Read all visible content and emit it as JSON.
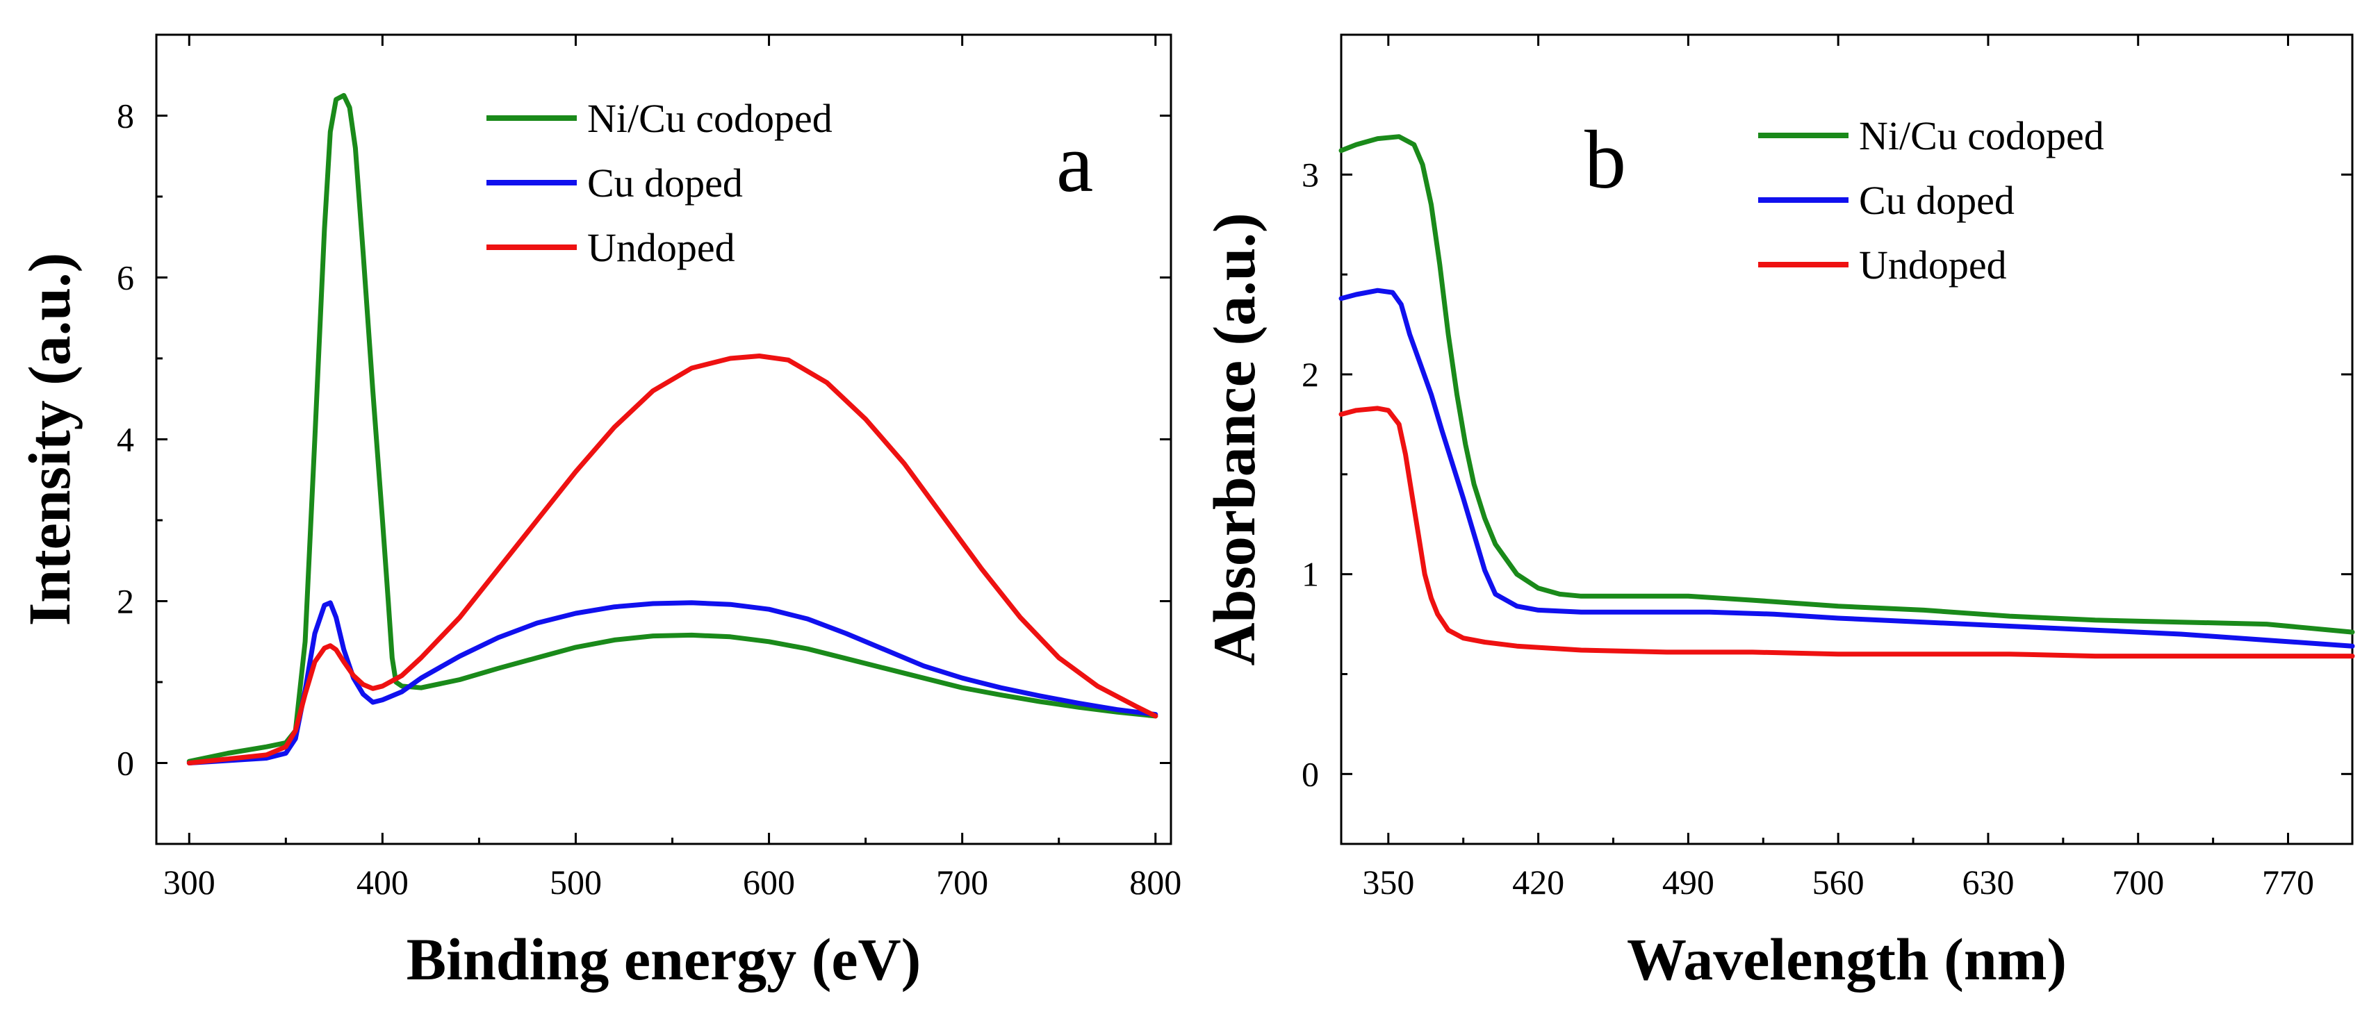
{
  "chart_data": [
    {
      "panel_label": "a",
      "type": "line",
      "xlabel": "Binding energy (eV)",
      "ylabel": "Intensity (a.u.)",
      "xlim": [
        283,
        808
      ],
      "ylim": [
        -1,
        9
      ],
      "xticks": [
        300,
        400,
        500,
        600,
        700,
        800
      ],
      "yticks": [
        0,
        2,
        4,
        6,
        8
      ],
      "grid": false,
      "legend_position": "top-center",
      "series": [
        {
          "name": "Ni/Cu codoped",
          "color": "#1a8a1a",
          "x": [
            300,
            320,
            340,
            350,
            355,
            360,
            365,
            370,
            373,
            376,
            380,
            383,
            386,
            390,
            395,
            400,
            403,
            405,
            407,
            410,
            420,
            440,
            460,
            480,
            500,
            520,
            540,
            560,
            580,
            600,
            620,
            640,
            660,
            680,
            700,
            720,
            740,
            760,
            780,
            800
          ],
          "y": [
            0.02,
            0.12,
            0.2,
            0.25,
            0.4,
            1.5,
            4.0,
            6.6,
            7.8,
            8.2,
            8.25,
            8.1,
            7.6,
            6.3,
            4.6,
            3.0,
            2.0,
            1.3,
            1.0,
            0.95,
            0.93,
            1.03,
            1.17,
            1.3,
            1.43,
            1.52,
            1.57,
            1.58,
            1.56,
            1.5,
            1.41,
            1.29,
            1.17,
            1.05,
            0.93,
            0.84,
            0.76,
            0.69,
            0.63,
            0.58
          ]
        },
        {
          "name": "Cu doped",
          "color": "#1010ee",
          "x": [
            300,
            320,
            340,
            350,
            355,
            360,
            365,
            370,
            373,
            376,
            380,
            385,
            390,
            395,
            400,
            410,
            420,
            440,
            460,
            480,
            500,
            520,
            540,
            560,
            580,
            600,
            620,
            640,
            660,
            680,
            700,
            720,
            740,
            760,
            780,
            800
          ],
          "y": [
            0.0,
            0.03,
            0.06,
            0.12,
            0.3,
            0.9,
            1.6,
            1.95,
            1.98,
            1.8,
            1.4,
            1.05,
            0.85,
            0.75,
            0.78,
            0.88,
            1.05,
            1.32,
            1.55,
            1.73,
            1.85,
            1.93,
            1.97,
            1.98,
            1.96,
            1.9,
            1.78,
            1.6,
            1.4,
            1.2,
            1.05,
            0.93,
            0.83,
            0.74,
            0.66,
            0.6
          ]
        },
        {
          "name": "Undoped",
          "color": "#ee1111",
          "x": [
            300,
            320,
            340,
            350,
            355,
            360,
            365,
            370,
            373,
            376,
            380,
            385,
            390,
            395,
            400,
            410,
            420,
            440,
            460,
            480,
            500,
            520,
            540,
            560,
            580,
            595,
            610,
            630,
            650,
            670,
            690,
            710,
            730,
            750,
            770,
            790,
            800
          ],
          "y": [
            0.0,
            0.05,
            0.1,
            0.2,
            0.4,
            0.85,
            1.25,
            1.42,
            1.45,
            1.4,
            1.25,
            1.08,
            0.97,
            0.92,
            0.95,
            1.08,
            1.3,
            1.8,
            2.4,
            3.0,
            3.6,
            4.15,
            4.6,
            4.88,
            5.0,
            5.03,
            4.98,
            4.7,
            4.25,
            3.7,
            3.05,
            2.4,
            1.8,
            1.3,
            0.95,
            0.7,
            0.58
          ]
        }
      ]
    },
    {
      "panel_label": "b",
      "type": "line",
      "xlabel": "Wavelength (nm)",
      "ylabel": "Absorbance (a.u.)",
      "xlim": [
        328,
        800
      ],
      "ylim": [
        -0.35,
        3.7
      ],
      "xticks": [
        350,
        420,
        490,
        560,
        630,
        700,
        770
      ],
      "yticks": [
        0,
        1,
        2,
        3
      ],
      "grid": false,
      "legend_position": "top-right",
      "series": [
        {
          "name": "Ni/Cu codoped",
          "color": "#1a8a1a",
          "x": [
            328,
            335,
            345,
            355,
            362,
            366,
            370,
            374,
            378,
            382,
            386,
            390,
            395,
            400,
            410,
            420,
            430,
            440,
            460,
            490,
            520,
            560,
            600,
            640,
            680,
            720,
            760,
            800
          ],
          "y": [
            3.12,
            3.15,
            3.18,
            3.19,
            3.15,
            3.05,
            2.85,
            2.55,
            2.2,
            1.9,
            1.65,
            1.45,
            1.28,
            1.15,
            1.0,
            0.93,
            0.9,
            0.89,
            0.89,
            0.89,
            0.87,
            0.84,
            0.82,
            0.79,
            0.77,
            0.76,
            0.75,
            0.71
          ]
        },
        {
          "name": "Cu doped",
          "color": "#1010ee",
          "x": [
            328,
            335,
            345,
            352,
            356,
            360,
            365,
            370,
            375,
            380,
            385,
            390,
            395,
            400,
            410,
            420,
            440,
            470,
            500,
            530,
            560,
            600,
            640,
            680,
            720,
            760,
            800
          ],
          "y": [
            2.38,
            2.4,
            2.42,
            2.41,
            2.35,
            2.2,
            2.05,
            1.9,
            1.72,
            1.55,
            1.38,
            1.2,
            1.02,
            0.9,
            0.84,
            0.82,
            0.81,
            0.81,
            0.81,
            0.8,
            0.78,
            0.76,
            0.74,
            0.72,
            0.7,
            0.67,
            0.64
          ]
        },
        {
          "name": "Undoped",
          "color": "#ee1111",
          "x": [
            328,
            335,
            345,
            350,
            355,
            358,
            361,
            364,
            367,
            370,
            373,
            378,
            385,
            395,
            410,
            440,
            480,
            520,
            560,
            600,
            640,
            680,
            720,
            760,
            800
          ],
          "y": [
            1.8,
            1.82,
            1.83,
            1.82,
            1.75,
            1.6,
            1.4,
            1.2,
            1.0,
            0.88,
            0.8,
            0.72,
            0.68,
            0.66,
            0.64,
            0.62,
            0.61,
            0.61,
            0.6,
            0.6,
            0.6,
            0.59,
            0.59,
            0.59,
            0.59
          ]
        }
      ]
    }
  ]
}
